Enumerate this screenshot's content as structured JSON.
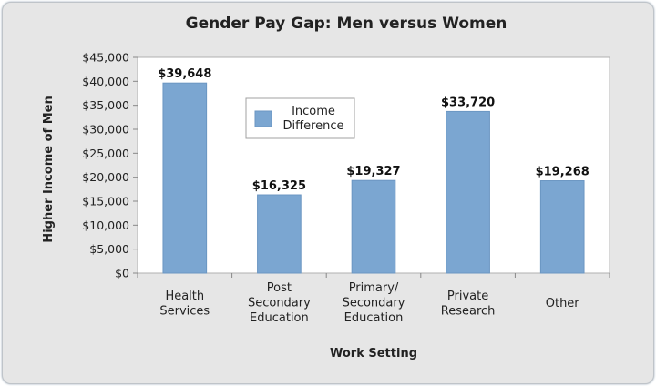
{
  "chart_data": {
    "type": "bar",
    "title": "Gender Pay Gap: Men versus Women",
    "xlabel": "Work Setting",
    "ylabel": "Higher Income of Men",
    "categories": [
      [
        "Health",
        "Services"
      ],
      [
        "Post",
        "Secondary",
        "Education"
      ],
      [
        "Primary/",
        "Secondary",
        "Education"
      ],
      [
        "Private",
        "Research"
      ],
      [
        "Other"
      ]
    ],
    "series": [
      {
        "name": "Income Difference",
        "legend_lines": [
          "Income",
          "Difference"
        ],
        "values": [
          39648,
          16325,
          19327,
          33720,
          19268
        ]
      }
    ],
    "data_labels": [
      "$39,648",
      "$16,325",
      "$19,327",
      "$33,720",
      "$19,268"
    ],
    "ylim": [
      0,
      45000
    ],
    "yticks": [
      0,
      5000,
      10000,
      15000,
      20000,
      25000,
      30000,
      35000,
      40000,
      45000
    ],
    "ytick_labels": [
      "$0",
      "$5,000",
      "$10,000",
      "$15,000",
      "$20,000",
      "$25,000",
      "$30,000",
      "$35,000",
      "$40,000",
      "$45,000"
    ],
    "grid": false,
    "legend_position": "upper-center inside plot",
    "colors": {
      "bar": "#7ba6d1",
      "bar_edge": "#6b96c2",
      "frame": "#e6e6e6",
      "plot_bg": "#ffffff"
    }
  }
}
